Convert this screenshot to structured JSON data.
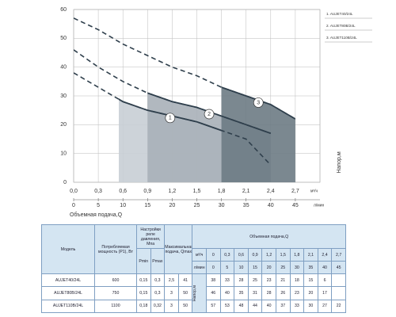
{
  "chart_data": {
    "type": "line",
    "x": [
      0,
      0.3,
      0.6,
      0.9,
      1.2,
      1.5,
      1.8,
      2.1,
      2.4,
      2.7
    ],
    "series": [
      {
        "name": "1. AUJET40/24L",
        "label": "1",
        "color": "#2f3f4c",
        "fill": "#c8ced5",
        "range": [
          0.55,
          1.8
        ],
        "values": [
          38,
          33,
          28,
          25,
          23,
          21,
          18,
          15,
          6,
          null
        ]
      },
      {
        "name": "2. AUJET80B/24L",
        "label": "2",
        "color": "#2f3f4c",
        "fill": "#a9b0b8",
        "range": [
          0.9,
          2.4
        ],
        "values": [
          46,
          40,
          35,
          31,
          28,
          26,
          23,
          20,
          17,
          null
        ]
      },
      {
        "name": "3. AUJET110B/24L",
        "label": "3",
        "color": "#2f3f4c",
        "fill": "#6d7b84",
        "range": [
          1.8,
          2.7
        ],
        "values": [
          57,
          53,
          48,
          44,
          40,
          37,
          33,
          30,
          27,
          22
        ]
      }
    ],
    "xlim": [
      0,
      3
    ],
    "xticks": [
      {
        "value": 0,
        "label": "0,0"
      },
      {
        "value": 0.3,
        "label": "0,3"
      },
      {
        "value": 0.6,
        "label": "0,6"
      },
      {
        "value": 0.9,
        "label": "0,9"
      },
      {
        "value": 1.2,
        "label": "1,2"
      },
      {
        "value": 1.5,
        "label": "1,5"
      },
      {
        "value": 1.8,
        "label": "1,8"
      },
      {
        "value": 2.1,
        "label": "2,1"
      },
      {
        "value": 2.4,
        "label": "2,4"
      },
      {
        "value": 2.7,
        "label": "2,7"
      }
    ],
    "x_unit": "м³/ч",
    "x2lim": [
      0,
      50
    ],
    "x2ticks": [
      0,
      5,
      10,
      15,
      20,
      25,
      30,
      35,
      40,
      45
    ],
    "x2_unit": "л/мин",
    "ylim": [
      0,
      60
    ],
    "yticks": [
      0,
      10,
      20,
      30,
      40,
      50,
      60
    ],
    "xlabel": "Объемная подача,Q",
    "ylabel": "Напор,м",
    "grid": true
  },
  "table": {
    "headers": {
      "model": "Модель",
      "power": "Потребляемая мощность (P1), Вт",
      "relay": "Настройки реле давления, Мпа",
      "qmax": "Максимальная подача, Qmax",
      "flow": "Объемная подача,Q",
      "pmin": "Pmin",
      "pmax": "Pmax",
      "unit_m3h": "м³/ч",
      "unit_lmin": "л/мин",
      "head": "Напор,м"
    },
    "flow_m3h": [
      "0",
      "0,3",
      "0,6",
      "0,9",
      "1,2",
      "1,5",
      "1,8",
      "2,1",
      "2,4",
      "2,7"
    ],
    "flow_lmin": [
      "0",
      "5",
      "10",
      "15",
      "20",
      "25",
      "30",
      "35",
      "40",
      "45"
    ],
    "rows": [
      {
        "cells": [
          "AUJET40/24L",
          "600",
          "0,15",
          "0,3",
          "2,5",
          "41"
        ],
        "head": [
          "38",
          "33",
          "28",
          "25",
          "23",
          "21",
          "18",
          "15",
          "6"
        ]
      },
      {
        "cells": [
          "AUJET80B/24L",
          "750",
          "0,15",
          "0,3",
          "3",
          "50"
        ],
        "head": [
          "46",
          "40",
          "35",
          "31",
          "28",
          "26",
          "23",
          "20",
          "17"
        ]
      },
      {
        "cells": [
          "AUJET110B/24L",
          "1100",
          "0,18",
          "0,32",
          "3",
          "50"
        ],
        "head": [
          "57",
          "53",
          "48",
          "44",
          "40",
          "37",
          "33",
          "30",
          "27",
          "22"
        ]
      }
    ]
  }
}
